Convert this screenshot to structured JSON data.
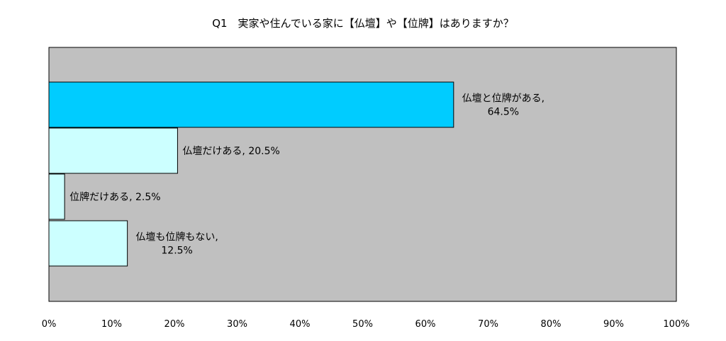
{
  "chart_data": {
    "type": "bar",
    "orientation": "horizontal",
    "title": "Q1　実家や住んでいる家に【仏壇】や【位牌】はありますか？",
    "categories": [
      "仏壇と位牌がある",
      "仏壇だけある",
      "位牌だけある",
      "仏壇も位牌もない"
    ],
    "values": [
      64.5,
      20.5,
      2.5,
      12.5
    ],
    "data_labels": [
      [
        "仏壇と位牌がある,",
        "64.5%"
      ],
      [
        "仏壇だけある, 20.5%"
      ],
      [
        "位牌だけある, 2.5%"
      ],
      [
        "仏壇も位牌もない,",
        "12.5%"
      ]
    ],
    "bar_colors": [
      "#00CCFF",
      "#CCFFFF",
      "#CCFFFF",
      "#CCFFFF"
    ],
    "xlim": [
      0,
      100
    ],
    "x_ticks": [
      0,
      10,
      20,
      30,
      40,
      50,
      60,
      70,
      80,
      90,
      100
    ],
    "x_tick_labels": [
      "0%",
      "10%",
      "20%",
      "30%",
      "40%",
      "50%",
      "60%",
      "70%",
      "80%",
      "90%",
      "100%"
    ],
    "xlabel": "",
    "ylabel": "",
    "plot_background": "#C0C0C0",
    "grid": false,
    "legend": "none"
  }
}
